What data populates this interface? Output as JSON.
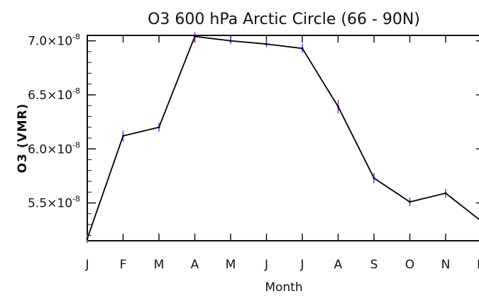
{
  "chart_data": {
    "type": "line",
    "title": "O3 600 hPa Arctic Circle (66 - 90N)",
    "xlabel": "Month",
    "ylabel": "O3 (VMR)",
    "categories": [
      "J",
      "F",
      "M",
      "A",
      "M",
      "J",
      "J",
      "A",
      "S",
      "O",
      "N",
      "D"
    ],
    "values": [
      5.17e-08,
      6.12e-08,
      6.2e-08,
      7.04e-08,
      7e-08,
      6.97e-08,
      6.93e-08,
      6.39e-08,
      5.73e-08,
      5.51e-08,
      5.59e-08,
      5.33e-08
    ],
    "errors": [
      4e-10,
      5e-10,
      4e-10,
      4e-10,
      3e-10,
      3e-10,
      4e-10,
      6e-10,
      5e-10,
      4e-10,
      4e-10,
      4e-10
    ],
    "ylim": [
      5.15e-08,
      7.05e-08
    ],
    "yticks": [
      {
        "value": 7e-08,
        "mant": "7.0",
        "exp": "-8"
      },
      {
        "value": 6.5e-08,
        "mant": "6.5",
        "exp": "-8"
      },
      {
        "value": 6e-08,
        "mant": "6.0",
        "exp": "-8"
      },
      {
        "value": 5.5e-08,
        "mant": "5.5",
        "exp": "-8"
      }
    ],
    "grid": false,
    "line_color": "#000000",
    "errorbar_color": "#8a2be2"
  }
}
